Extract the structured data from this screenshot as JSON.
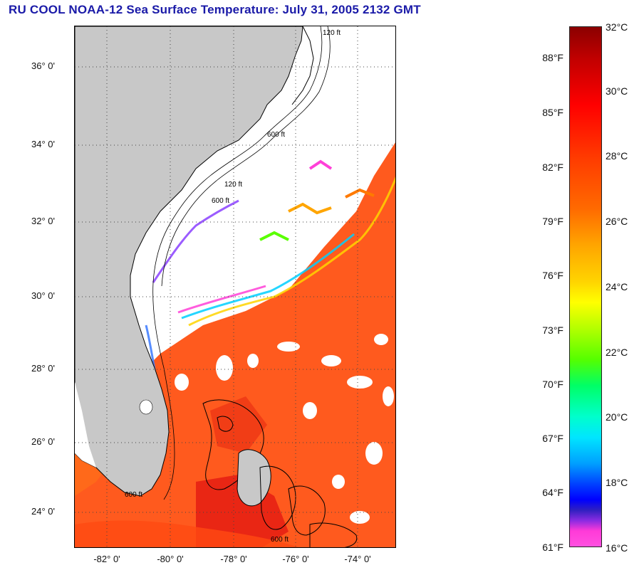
{
  "title": "RU COOL  NOAA-12  Sea Surface Temperature:  July 31, 2005 2132 GMT",
  "map": {
    "latitude_labels": [
      "36° 0'",
      "34° 0'",
      "32° 0'",
      "30° 0'",
      "28° 0'",
      "26° 0'",
      "24° 0'"
    ],
    "longitude_labels": [
      "-82° 0'",
      "-80° 0'",
      "-78° 0'",
      "-76° 0'",
      "-74° 0'"
    ],
    "contour_labels": [
      "120 ft",
      "600 ft",
      "120 ft",
      "600 ft",
      "600 ft",
      "600 ft"
    ],
    "land_color": "#c8c8c8",
    "cloud_color": "#ffffff",
    "warm_water_color": "#ff5a1e"
  },
  "colorbar": {
    "fahrenheit_labels": [
      "88°F",
      "85°F",
      "82°F",
      "79°F",
      "76°F",
      "73°F",
      "70°F",
      "67°F",
      "64°F",
      "61°F"
    ],
    "celsius_labels": [
      "32°C",
      "30°C",
      "28°C",
      "26°C",
      "24°C",
      "22°C",
      "20°C",
      "18°C",
      "16°C"
    ],
    "range_celsius": [
      16,
      32
    ],
    "range_fahrenheit": [
      61,
      90
    ]
  }
}
